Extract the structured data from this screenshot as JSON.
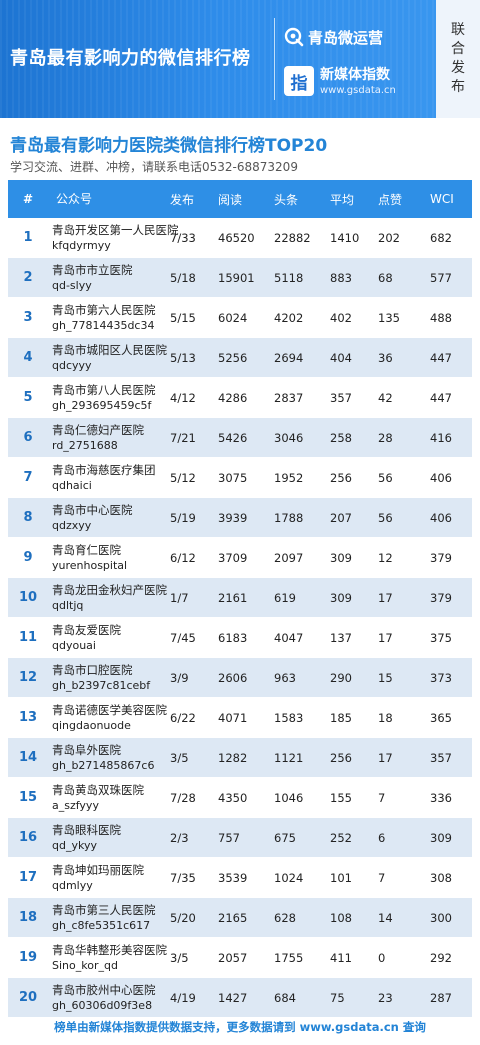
{
  "banner": {
    "title": "青岛最有影响力的微信排行榜",
    "brand_name": "青岛微运营",
    "media_logo_char": "指",
    "media_name": "新媒体指数",
    "media_url": "www.gsdata.cn",
    "side_tag": "联合发布"
  },
  "heading": {
    "title": "青岛最有影响力医院类微信排行榜TOP20",
    "subtitle": "学习交流、进群、冲榜，请联系电话0532-68873209"
  },
  "table": {
    "headers": {
      "rank": "#",
      "name": "公众号",
      "pub": "发布",
      "read": "阅读",
      "head": "头条",
      "avg": "平均",
      "like": "点赞",
      "wci": "WCI"
    },
    "rows": [
      {
        "rank": "1",
        "name": "青岛开发区第一人民医院",
        "id": "kfqdyrmyy",
        "pub": "7/33",
        "read": "46520",
        "head": "22882",
        "avg": "1410",
        "like": "202",
        "wci": "682"
      },
      {
        "rank": "2",
        "name": "青岛市市立医院",
        "id": "qd-slyy",
        "pub": "5/18",
        "read": "15901",
        "head": "5118",
        "avg": "883",
        "like": "68",
        "wci": "577"
      },
      {
        "rank": "3",
        "name": "青岛市第六人民医院",
        "id": "gh_77814435dc34",
        "pub": "5/15",
        "read": "6024",
        "head": "4202",
        "avg": "402",
        "like": "135",
        "wci": "488"
      },
      {
        "rank": "4",
        "name": "青岛市城阳区人民医院",
        "id": "qdcyyy",
        "pub": "5/13",
        "read": "5256",
        "head": "2694",
        "avg": "404",
        "like": "36",
        "wci": "447"
      },
      {
        "rank": "5",
        "name": "青岛市第八人民医院",
        "id": "gh_293695459c5f",
        "pub": "4/12",
        "read": "4286",
        "head": "2837",
        "avg": "357",
        "like": "42",
        "wci": "447"
      },
      {
        "rank": "6",
        "name": "青岛仁德妇产医院",
        "id": "rd_2751688",
        "pub": "7/21",
        "read": "5426",
        "head": "3046",
        "avg": "258",
        "like": "28",
        "wci": "416"
      },
      {
        "rank": "7",
        "name": "青岛市海慈医疗集团",
        "id": "qdhaici",
        "pub": "5/12",
        "read": "3075",
        "head": "1952",
        "avg": "256",
        "like": "56",
        "wci": "406"
      },
      {
        "rank": "8",
        "name": "青岛市中心医院",
        "id": "qdzxyy",
        "pub": "5/19",
        "read": "3939",
        "head": "1788",
        "avg": "207",
        "like": "56",
        "wci": "406"
      },
      {
        "rank": "9",
        "name": "青岛育仁医院",
        "id": "yurenhospital",
        "pub": "6/12",
        "read": "3709",
        "head": "2097",
        "avg": "309",
        "like": "12",
        "wci": "379"
      },
      {
        "rank": "10",
        "name": "青岛龙田金秋妇产医院",
        "id": "qdltjq",
        "pub": "1/7",
        "read": "2161",
        "head": "619",
        "avg": "309",
        "like": "17",
        "wci": "379"
      },
      {
        "rank": "11",
        "name": "青岛友爱医院",
        "id": "qdyouai",
        "pub": "7/45",
        "read": "6183",
        "head": "4047",
        "avg": "137",
        "like": "17",
        "wci": "375"
      },
      {
        "rank": "12",
        "name": "青岛市口腔医院",
        "id": "gh_b2397c81cebf",
        "pub": "3/9",
        "read": "2606",
        "head": "963",
        "avg": "290",
        "like": "15",
        "wci": "373"
      },
      {
        "rank": "13",
        "name": "青岛诺德医学美容医院",
        "id": "qingdaonuode",
        "pub": "6/22",
        "read": "4071",
        "head": "1583",
        "avg": "185",
        "like": "18",
        "wci": "365"
      },
      {
        "rank": "14",
        "name": "青岛阜外医院",
        "id": "gh_b271485867c6",
        "pub": "3/5",
        "read": "1282",
        "head": "1121",
        "avg": "256",
        "like": "17",
        "wci": "357"
      },
      {
        "rank": "15",
        "name": "青岛黄岛双珠医院",
        "id": "a_szfyyy",
        "pub": "7/28",
        "read": "4350",
        "head": "1046",
        "avg": "155",
        "like": "7",
        "wci": "336"
      },
      {
        "rank": "16",
        "name": "青岛眼科医院",
        "id": "qd_ykyy",
        "pub": "2/3",
        "read": "757",
        "head": "675",
        "avg": "252",
        "like": "6",
        "wci": "309"
      },
      {
        "rank": "17",
        "name": "青岛坤如玛丽医院",
        "id": "qdmlyy",
        "pub": "7/35",
        "read": "3539",
        "head": "1024",
        "avg": "101",
        "like": "7",
        "wci": "308"
      },
      {
        "rank": "18",
        "name": "青岛市第三人民医院",
        "id": "gh_c8fe5351c617",
        "pub": "5/20",
        "read": "2165",
        "head": "628",
        "avg": "108",
        "like": "14",
        "wci": "300"
      },
      {
        "rank": "19",
        "name": "青岛华韩整形美容医院",
        "id": "Sino_kor_qd",
        "pub": "3/5",
        "read": "2057",
        "head": "1755",
        "avg": "411",
        "like": "0",
        "wci": "292"
      },
      {
        "rank": "20",
        "name": "青岛市胶州中心医院",
        "id": "gh_60306d09f3e8",
        "pub": "4/19",
        "read": "1427",
        "head": "684",
        "avg": "75",
        "like": "23",
        "wci": "287"
      }
    ]
  },
  "footer": {
    "text": "榜单由新媒体指数提供数据支持，更多数据请到 www.gsdata.cn 查询"
  },
  "colors": {
    "banner_blue": "#2e8cea",
    "accent_blue": "#2384d6",
    "header_blue": "#2e8fe6",
    "row_alt": "#dde8f4"
  },
  "icons": {
    "brand_logo": "wechat-ops-logo-icon",
    "media_logo": "gsdata-logo-icon"
  }
}
